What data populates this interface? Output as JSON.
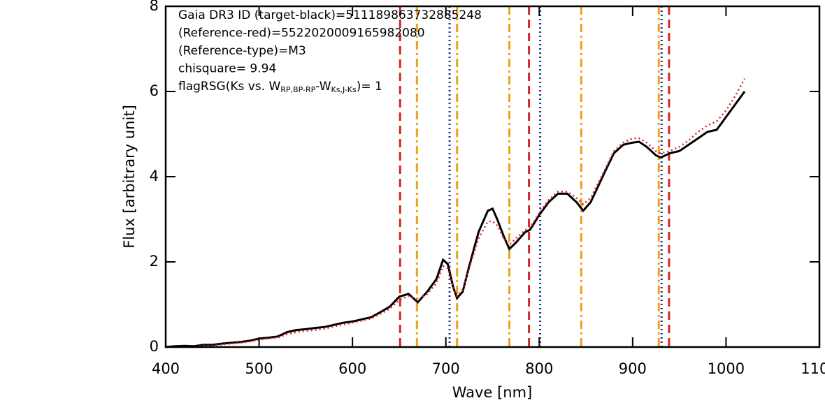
{
  "chart_data": {
    "type": "line",
    "x_label": "Wave [nm]",
    "y_label": "Flux [arbitrary unit]",
    "annotations": [
      "Gaia DR3 ID (target-black)=5111898637328852​48",
      "(Reference-red)=5522020009165982080",
      "(Reference-type)=M3",
      "chisquare=  9.94"
    ],
    "flag_annotation": [
      "flagRSG(Ks vs. W",
      "RP,BP-RP",
      "-W",
      "Ks,J-Ks",
      ")= 1"
    ],
    "xlim": [
      400,
      1100
    ],
    "ylim": [
      0,
      8
    ],
    "xticks": [
      400,
      500,
      600,
      700,
      800,
      900,
      1000,
      1100
    ],
    "yticks": [
      0,
      2,
      4,
      6,
      8
    ],
    "x": [
      400,
      410,
      420,
      430,
      440,
      450,
      460,
      470,
      480,
      490,
      500,
      510,
      520,
      530,
      540,
      550,
      560,
      570,
      580,
      590,
      600,
      610,
      620,
      630,
      640,
      650,
      660,
      670,
      680,
      690,
      697,
      702,
      708,
      712,
      718,
      725,
      735,
      745,
      750,
      755,
      762,
      768,
      775,
      785,
      790,
      800,
      810,
      820,
      830,
      840,
      847,
      855,
      870,
      880,
      890,
      900,
      907,
      915,
      925,
      930,
      940,
      950,
      960,
      970,
      980,
      990,
      1000,
      1010,
      1020
    ],
    "series": [
      {
        "color": "#000000",
        "style": "solid",
        "values": [
          0,
          0.02,
          0.03,
          0.02,
          0.05,
          0.05,
          0.08,
          0.1,
          0.12,
          0.15,
          0.2,
          0.22,
          0.25,
          0.35,
          0.4,
          0.42,
          0.45,
          0.47,
          0.52,
          0.57,
          0.6,
          0.65,
          0.7,
          0.82,
          0.95,
          1.18,
          1.25,
          1.05,
          1.3,
          1.6,
          2.05,
          1.95,
          1.4,
          1.15,
          1.3,
          1.9,
          2.7,
          3.2,
          3.25,
          3.0,
          2.6,
          2.3,
          2.45,
          2.7,
          2.75,
          3.1,
          3.4,
          3.6,
          3.6,
          3.4,
          3.2,
          3.4,
          4.1,
          4.55,
          4.75,
          4.8,
          4.82,
          4.7,
          4.5,
          4.45,
          4.55,
          4.6,
          4.75,
          4.9,
          5.05,
          5.1,
          5.4,
          5.7,
          6.0
        ]
      },
      {
        "color": "#e02020",
        "style": "dotted",
        "values": [
          0,
          0,
          0.01,
          0,
          0.03,
          0.03,
          0.06,
          0.08,
          0.1,
          0.13,
          0.17,
          0.2,
          0.22,
          0.3,
          0.35,
          0.38,
          0.4,
          0.43,
          0.48,
          0.53,
          0.57,
          0.62,
          0.67,
          0.78,
          0.9,
          1.1,
          1.2,
          1.1,
          1.25,
          1.5,
          1.9,
          1.85,
          1.4,
          1.2,
          1.35,
          1.85,
          2.55,
          2.95,
          2.95,
          2.85,
          2.55,
          2.4,
          2.55,
          2.75,
          2.8,
          3.15,
          3.45,
          3.65,
          3.65,
          3.5,
          3.35,
          3.5,
          4.15,
          4.6,
          4.8,
          4.9,
          4.9,
          4.8,
          4.6,
          4.55,
          4.6,
          4.7,
          4.85,
          5.05,
          5.2,
          5.3,
          5.55,
          5.9,
          6.3
        ]
      }
    ],
    "vlines": [
      {
        "x": 651,
        "color": "#d62728",
        "style": "dashed"
      },
      {
        "x": 789,
        "color": "#d62728",
        "style": "dashed"
      },
      {
        "x": 939,
        "color": "#d62728",
        "style": "dashed"
      },
      {
        "x": 669,
        "color": "#e8a317",
        "style": "dashdot"
      },
      {
        "x": 712,
        "color": "#e8a317",
        "style": "dashdot"
      },
      {
        "x": 768,
        "color": "#e8a317",
        "style": "dashdot"
      },
      {
        "x": 845,
        "color": "#e8a317",
        "style": "dashdot"
      },
      {
        "x": 928,
        "color": "#e8a317",
        "style": "dashdot"
      },
      {
        "x": 704,
        "color": "#2b2b8c",
        "style": "dotted"
      },
      {
        "x": 801,
        "color": "#2b2b8c",
        "style": "dotted"
      },
      {
        "x": 931,
        "color": "#2b2b8c",
        "style": "dotted"
      }
    ]
  }
}
